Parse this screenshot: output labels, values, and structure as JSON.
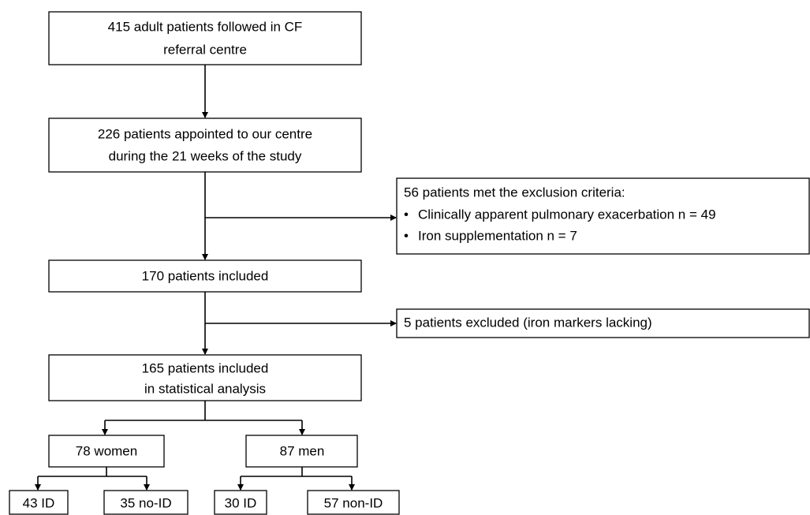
{
  "nodes": [
    {
      "lines": [
        "415 adult patients followed in CF",
        "referral centre"
      ]
    },
    {
      "lines": [
        "226 patients appointed to our centre",
        "during the 21 weeks of the study"
      ]
    },
    {
      "lines": [
        "170 patients included"
      ]
    },
    {
      "lines": [
        "165 patients included",
        "in statistical analysis"
      ]
    },
    {
      "lines": [
        "78 women"
      ]
    },
    {
      "lines": [
        "87 men"
      ]
    },
    {
      "lines": [
        "43 ID"
      ]
    },
    {
      "lines": [
        "35 no-ID"
      ]
    },
    {
      "lines": [
        "30 ID"
      ]
    },
    {
      "lines": [
        "57 non-ID"
      ]
    }
  ],
  "exclusions": [
    {
      "title": "56 patients met the exclusion criteria:",
      "items": [
        "Clinically apparent pulmonary exacerbation n = 49",
        "Iron supplementation n = 7"
      ]
    },
    {
      "title": "5 patients excluded (iron markers lacking)"
    }
  ]
}
